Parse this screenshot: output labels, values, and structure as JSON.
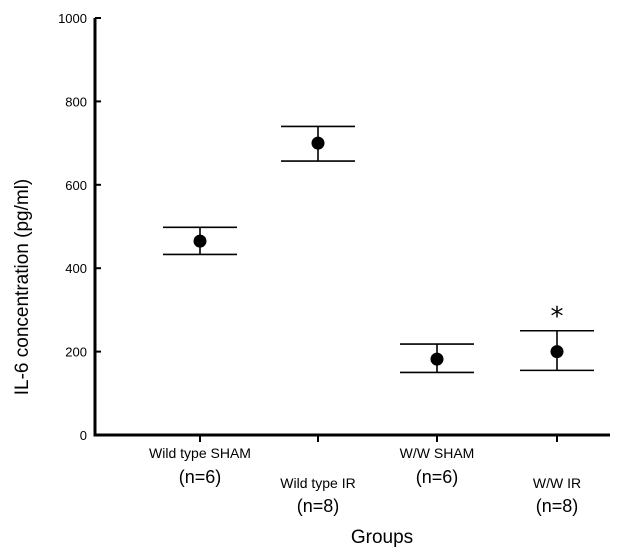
{
  "chart_data": {
    "type": "scatter",
    "title": "",
    "xlabel": "Groups",
    "ylabel": "IL-6 concentration (pg/ml)",
    "ylim": [
      0,
      1000
    ],
    "yticks": [
      "0",
      "200",
      "400",
      "600",
      "800",
      "1000"
    ],
    "grid": false,
    "categories": [
      {
        "label": "Wild type SHAM",
        "n": "(n=6)",
        "value": 465,
        "err_low": 433,
        "err_high": 498,
        "marker": ""
      },
      {
        "label": "Wild type IR",
        "n": "(n=8)",
        "value": 700,
        "err_low": 657,
        "err_high": 740,
        "marker": ""
      },
      {
        "label": "W/W SHAM",
        "n": "(n=6)",
        "value": 182,
        "err_low": 150,
        "err_high": 218,
        "marker": ""
      },
      {
        "label": "W/W IR",
        "n": "(n=8)",
        "value": 200,
        "err_low": 155,
        "err_high": 250,
        "marker": "*"
      }
    ]
  }
}
